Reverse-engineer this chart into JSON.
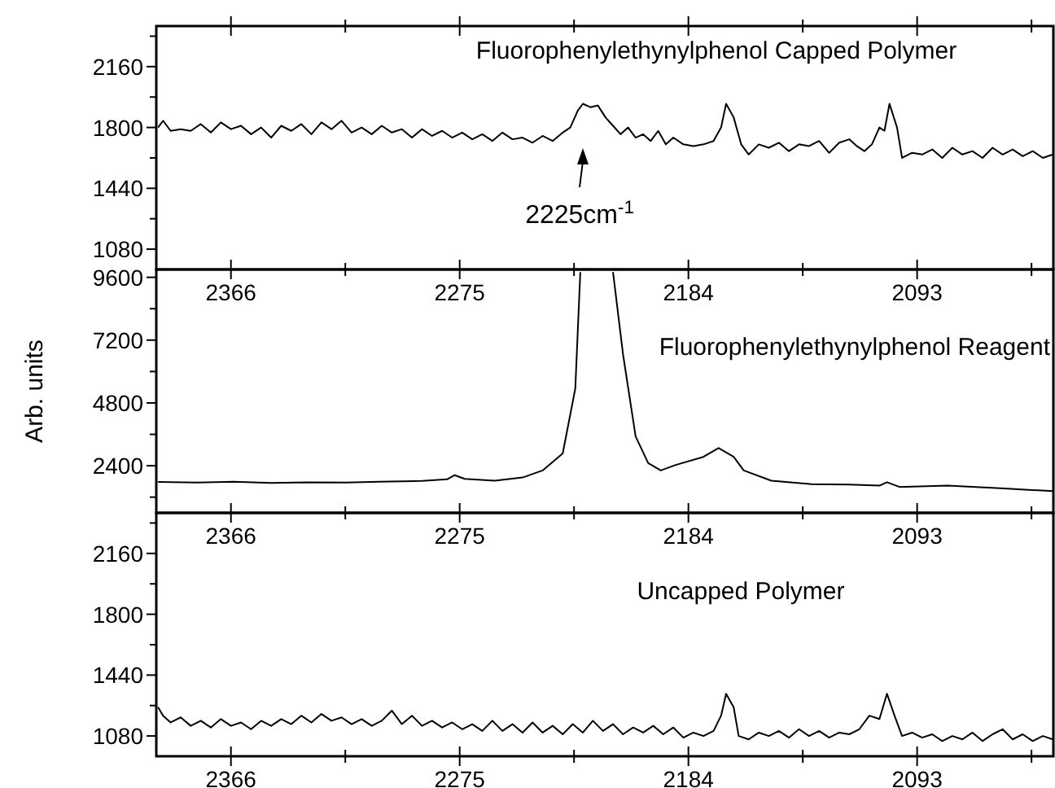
{
  "chart_data": [
    {
      "type": "line",
      "title": "Fluorophenylethynylphenol Capped Polymer",
      "color": "#000000",
      "xlim": [
        2395.7,
        2038.8
      ],
      "xticks": [
        {
          "value": 2366,
          "label": "2366"
        },
        {
          "value": 2320.5,
          "label": null
        },
        {
          "value": 2275,
          "label": "2275"
        },
        {
          "value": 2229.5,
          "label": null
        },
        {
          "value": 2184,
          "label": "2184"
        },
        {
          "value": 2138.5,
          "label": null
        },
        {
          "value": 2093,
          "label": "2093"
        },
        {
          "value": 2047.5,
          "label": null
        }
      ],
      "ylim": [
        960,
        2400
      ],
      "yticks": [
        {
          "value": 1080,
          "label": "1080"
        },
        {
          "value": 1260,
          "label": null
        },
        {
          "value": 1440,
          "label": "1440"
        },
        {
          "value": 1620,
          "label": null
        },
        {
          "value": 1800,
          "label": "1800"
        },
        {
          "value": 1980,
          "label": null
        },
        {
          "value": 2160,
          "label": "2160"
        },
        {
          "value": 2340,
          "label": null
        }
      ],
      "annotations": [
        "2225cm$^{-1}$"
      ],
      "x": [
        2395,
        2393,
        2390,
        2386,
        2382,
        2378,
        2374,
        2370,
        2366,
        2362,
        2358,
        2354,
        2350,
        2346,
        2342,
        2338,
        2334,
        2330,
        2326,
        2322,
        2318,
        2314,
        2310,
        2306,
        2302,
        2298,
        2294,
        2290,
        2286,
        2282,
        2278,
        2274,
        2270,
        2266,
        2262,
        2258,
        2254,
        2250,
        2246,
        2242,
        2238,
        2234,
        2231,
        2228,
        2226,
        2223,
        2220,
        2217,
        2214,
        2211,
        2208,
        2205,
        2202,
        2199,
        2196,
        2193,
        2190,
        2186,
        2182,
        2178,
        2174,
        2171,
        2169,
        2166,
        2163,
        2160,
        2156,
        2152,
        2148,
        2144,
        2140,
        2136,
        2132,
        2128,
        2124,
        2120,
        2117,
        2114,
        2111,
        2108,
        2106,
        2104,
        2101,
        2099,
        2095,
        2091,
        2087,
        2083,
        2079,
        2075,
        2071,
        2067,
        2063,
        2059,
        2055,
        2051,
        2047,
        2043,
        2039
      ],
      "values": [
        1800,
        1840,
        1780,
        1790,
        1780,
        1820,
        1770,
        1830,
        1790,
        1810,
        1760,
        1800,
        1740,
        1810,
        1780,
        1820,
        1760,
        1830,
        1790,
        1840,
        1770,
        1800,
        1760,
        1810,
        1770,
        1790,
        1740,
        1790,
        1750,
        1780,
        1740,
        1770,
        1730,
        1760,
        1720,
        1770,
        1730,
        1740,
        1710,
        1750,
        1720,
        1770,
        1800,
        1900,
        1940,
        1920,
        1930,
        1860,
        1810,
        1760,
        1800,
        1740,
        1760,
        1720,
        1780,
        1700,
        1740,
        1700,
        1690,
        1700,
        1720,
        1800,
        1940,
        1860,
        1700,
        1640,
        1700,
        1680,
        1710,
        1660,
        1700,
        1690,
        1720,
        1650,
        1710,
        1730,
        1690,
        1660,
        1700,
        1800,
        1780,
        1940,
        1800,
        1620,
        1650,
        1640,
        1670,
        1620,
        1680,
        1640,
        1660,
        1620,
        1680,
        1640,
        1670,
        1630,
        1660,
        1620,
        1640
      ]
    },
    {
      "type": "line",
      "title": "Fluorophenylethynylphenol Reagent",
      "ylabel": "Arb. units",
      "color": "#000000",
      "xlim": [
        2395.7,
        2038.8
      ],
      "xticks": [
        {
          "value": 2366,
          "label": "2366"
        },
        {
          "value": 2320.5,
          "label": null
        },
        {
          "value": 2275,
          "label": "2275"
        },
        {
          "value": 2229.5,
          "label": null
        },
        {
          "value": 2184,
          "label": "2184"
        },
        {
          "value": 2138.5,
          "label": null
        },
        {
          "value": 2093,
          "label": "2093"
        },
        {
          "value": 2047.5,
          "label": null
        }
      ],
      "ylim": [
        600,
        9900
      ],
      "yticks": [
        {
          "value": 1200,
          "label": null
        },
        {
          "value": 2400,
          "label": "2400"
        },
        {
          "value": 3600,
          "label": null
        },
        {
          "value": 4800,
          "label": "4800"
        },
        {
          "value": 6000,
          "label": null
        },
        {
          "value": 7200,
          "label": "7200"
        },
        {
          "value": 8400,
          "label": null
        },
        {
          "value": 9600,
          "label": "9600"
        }
      ],
      "x": [
        2395,
        2380,
        2365,
        2350,
        2335,
        2320,
        2307,
        2290,
        2280,
        2277,
        2273,
        2261,
        2250,
        2242,
        2234,
        2229,
        2227,
        2220,
        2214,
        2210,
        2205,
        2200,
        2195,
        2189,
        2178,
        2172,
        2166,
        2162,
        2151,
        2135,
        2120,
        2108,
        2105,
        2100,
        2081,
        2060,
        2039
      ],
      "values": [
        1780,
        1760,
        1790,
        1740,
        1770,
        1760,
        1790,
        1820,
        1880,
        2040,
        1900,
        1830,
        1950,
        2220,
        2870,
        5350,
        9800,
        null,
        9800,
        6650,
        3520,
        2500,
        2220,
        2430,
        2740,
        3080,
        2740,
        2220,
        1830,
        1700,
        1680,
        1640,
        1770,
        1590,
        1640,
        1540,
        1430
      ]
    },
    {
      "type": "line",
      "title": "Uncapped Polymer",
      "color": "#000000",
      "xlim": [
        2395.7,
        2038.8
      ],
      "xticks": [
        {
          "value": 2366,
          "label": "2366"
        },
        {
          "value": 2320.5,
          "label": null
        },
        {
          "value": 2275,
          "label": "2275"
        },
        {
          "value": 2229.5,
          "label": null
        },
        {
          "value": 2184,
          "label": "2184"
        },
        {
          "value": 2138.5,
          "label": null
        },
        {
          "value": 2093,
          "label": "2093"
        },
        {
          "value": 2047.5,
          "label": null
        }
      ],
      "ylim": [
        960,
        2400
      ],
      "yticks": [
        {
          "value": 1080,
          "label": "1080"
        },
        {
          "value": 1260,
          "label": null
        },
        {
          "value": 1440,
          "label": "1440"
        },
        {
          "value": 1620,
          "label": null
        },
        {
          "value": 1800,
          "label": "1800"
        },
        {
          "value": 1980,
          "label": null
        },
        {
          "value": 2160,
          "label": "2160"
        },
        {
          "value": 2340,
          "label": null
        }
      ],
      "x": [
        2395,
        2393,
        2390,
        2386,
        2382,
        2378,
        2374,
        2370,
        2366,
        2362,
        2358,
        2354,
        2350,
        2346,
        2342,
        2338,
        2334,
        2330,
        2326,
        2322,
        2318,
        2314,
        2310,
        2306,
        2302,
        2298,
        2294,
        2290,
        2286,
        2282,
        2278,
        2274,
        2270,
        2266,
        2262,
        2258,
        2254,
        2250,
        2246,
        2242,
        2238,
        2234,
        2230,
        2226,
        2222,
        2218,
        2214,
        2210,
        2206,
        2202,
        2198,
        2194,
        2190,
        2186,
        2182,
        2178,
        2174,
        2171,
        2169,
        2166,
        2164,
        2160,
        2156,
        2152,
        2148,
        2144,
        2140,
        2136,
        2132,
        2128,
        2124,
        2120,
        2116,
        2112,
        2108,
        2105,
        2102,
        2099,
        2095,
        2091,
        2087,
        2083,
        2079,
        2075,
        2071,
        2067,
        2063,
        2059,
        2055,
        2051,
        2047,
        2043,
        2039
      ],
      "values": [
        1250,
        1200,
        1160,
        1190,
        1140,
        1170,
        1130,
        1180,
        1140,
        1160,
        1120,
        1170,
        1140,
        1180,
        1150,
        1200,
        1160,
        1210,
        1170,
        1190,
        1150,
        1180,
        1140,
        1170,
        1230,
        1150,
        1200,
        1140,
        1170,
        1130,
        1160,
        1120,
        1150,
        1110,
        1170,
        1110,
        1150,
        1100,
        1160,
        1100,
        1140,
        1090,
        1150,
        1100,
        1170,
        1110,
        1150,
        1090,
        1130,
        1100,
        1140,
        1090,
        1130,
        1070,
        1100,
        1080,
        1110,
        1200,
        1330,
        1250,
        1080,
        1060,
        1100,
        1080,
        1110,
        1070,
        1120,
        1080,
        1110,
        1070,
        1100,
        1090,
        1120,
        1200,
        1180,
        1330,
        1200,
        1080,
        1100,
        1070,
        1090,
        1050,
        1080,
        1060,
        1100,
        1050,
        1090,
        1120,
        1060,
        1090,
        1050,
        1080,
        1060
      ]
    }
  ]
}
